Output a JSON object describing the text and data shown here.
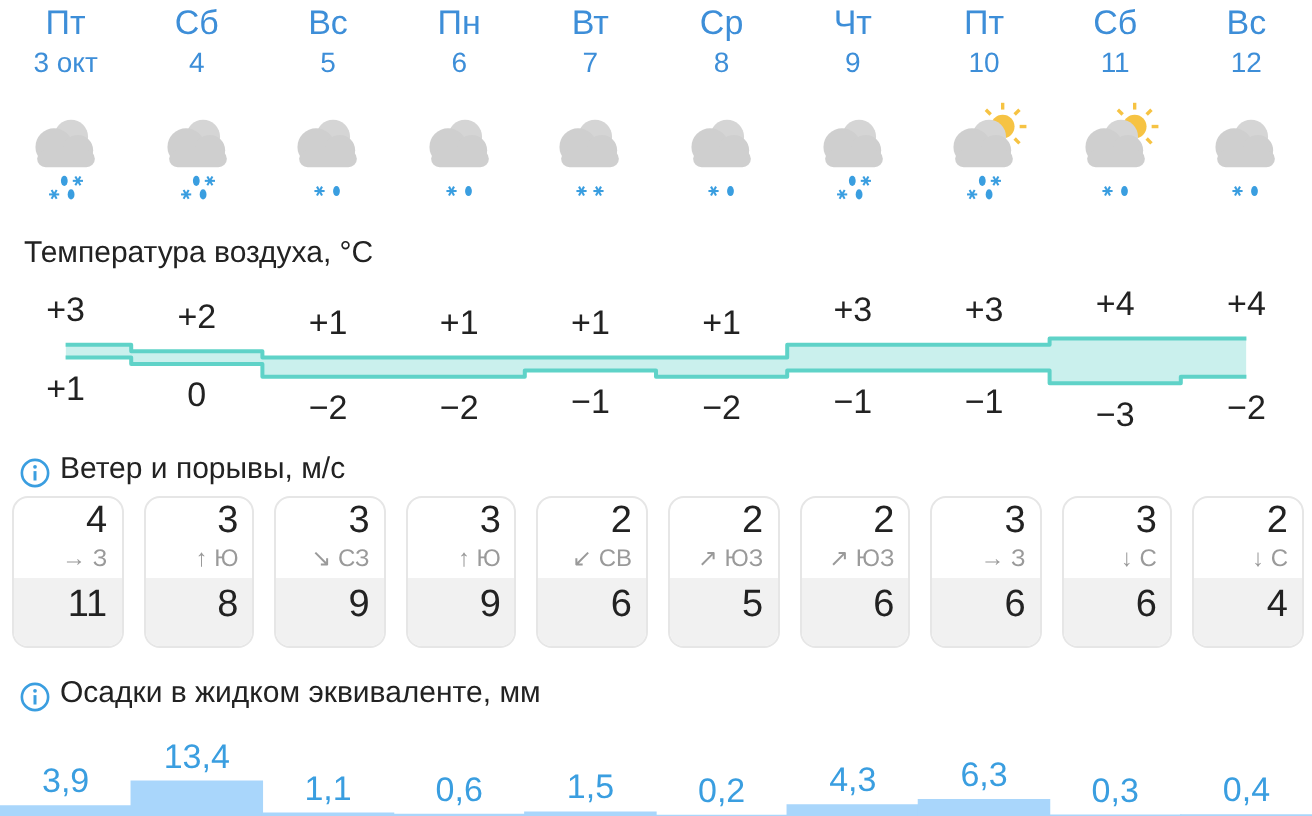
{
  "chart_data": [
    {
      "type": "step",
      "title": "Температура воздуха, °C",
      "categories": [
        "Пт 3 окт",
        "Сб 4",
        "Вс 5",
        "Пн 6",
        "Вт 7",
        "Ср 8",
        "Чт 9",
        "Пт 10",
        "Сб 11",
        "Вс 12"
      ],
      "series": [
        {
          "color": "#5fd3c8",
          "values": [
            3,
            2,
            1,
            1,
            1,
            1,
            3,
            3,
            4,
            4
          ],
          "lower": [
            1,
            0,
            -2,
            -2,
            -1,
            -2,
            -1,
            -1,
            -3,
            -2
          ],
          "upper": [
            3,
            2,
            1,
            1,
            1,
            1,
            3,
            3,
            4,
            4
          ],
          "value_labels": [
            "+3",
            "+2",
            "+1",
            "+1",
            "+1",
            "+1",
            "+3",
            "+3",
            "+4",
            "+4"
          ]
        },
        {
          "color": "#5fd3c8",
          "values": [
            1,
            0,
            -2,
            -2,
            -1,
            -2,
            -1,
            -1,
            -3,
            -2
          ],
          "value_labels": [
            "+1",
            "0",
            "−2",
            "−2",
            "−1",
            "−2",
            "−1",
            "−1",
            "−3",
            "−2"
          ]
        }
      ]
    },
    {
      "type": "other",
      "title": "Ветер и порывы, м/с",
      "annotations": [
        "4",
        "→ З",
        "11",
        "3",
        "↑ Ю",
        "8",
        "3",
        "↘ СЗ",
        "9",
        "3",
        "↑ Ю",
        "9",
        "2",
        "↙ СВ",
        "6",
        "2",
        "↗ ЮЗ",
        "5",
        "2",
        "↗ ЮЗ",
        "6",
        "3",
        "→ З",
        "6",
        "3",
        "↓ С",
        "6",
        "2",
        "↓ С",
        "4"
      ]
    },
    {
      "type": "bar",
      "title": "Осадки в жидком эквиваленте, мм",
      "categories": [
        null,
        null,
        null,
        null,
        null,
        null,
        null,
        null,
        null,
        null
      ],
      "values": [
        3.9,
        13.4,
        1.1,
        0.6,
        1.5,
        0.2,
        4.3,
        6.3,
        0.3,
        0.4
      ],
      "value_labels": [
        "3,9",
        "13,4",
        "1,1",
        "0,6",
        "1,5",
        "0,2",
        "4,3",
        "6,3",
        "0,3",
        "0,4"
      ],
      "color": "#a9d6fb"
    }
  ]
}
